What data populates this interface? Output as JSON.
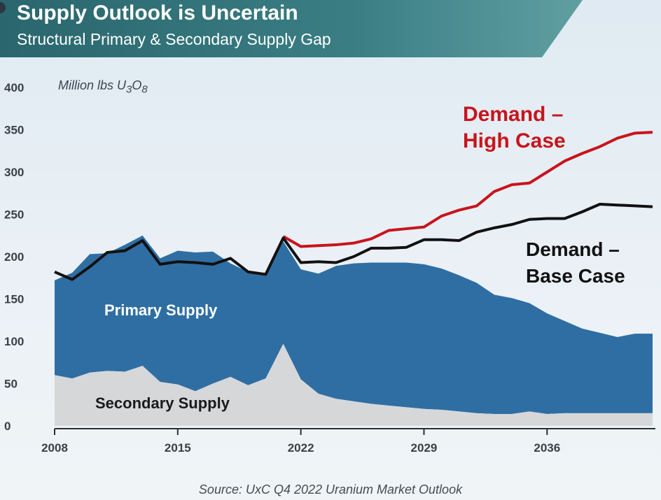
{
  "title": "Supply Outlook is Uncertain",
  "subtitle": "Structural Primary & Secondary Supply Gap",
  "source": "Source: UxC Q4 2022 Uranium Market Outlook",
  "colors": {
    "banner": "#2f6f77",
    "primary_supply": "#2f6ea3",
    "secondary_supply": "#d6d7d9",
    "demand_high": "#c8141c",
    "demand_base": "#111111"
  },
  "chart_data": {
    "type": "area",
    "unit_label": "Million lbs U3O8",
    "y_ticks": [
      0,
      50,
      100,
      150,
      200,
      250,
      300,
      350,
      400
    ],
    "x_ticks": [
      "2008",
      "2015",
      "2022",
      "2029",
      "2036"
    ],
    "ylim": [
      0,
      400
    ],
    "xlim": [
      2008,
      2042
    ],
    "series": [
      {
        "name": "Secondary Supply",
        "style": "area",
        "x": [
          2008,
          2009,
          2010,
          2011,
          2012,
          2013,
          2014,
          2015,
          2016,
          2017,
          2018,
          2019,
          2020,
          2021,
          2022,
          2023,
          2024,
          2025,
          2026,
          2027,
          2028,
          2029,
          2030,
          2031,
          2032,
          2033,
          2034,
          2035,
          2036,
          2037,
          2038,
          2039,
          2040,
          2041,
          2042
        ],
        "values": [
          60,
          56,
          63,
          65,
          64,
          71,
          52,
          49,
          41,
          50,
          58,
          48,
          56,
          97,
          55,
          38,
          32,
          29,
          26,
          24,
          22,
          20,
          19,
          17,
          15,
          14,
          14,
          17,
          14,
          15,
          15,
          15,
          15,
          15,
          15
        ]
      },
      {
        "name": "Primary Supply",
        "style": "area",
        "x": [
          2008,
          2009,
          2010,
          2011,
          2012,
          2013,
          2014,
          2015,
          2016,
          2017,
          2018,
          2019,
          2020,
          2021,
          2022,
          2023,
          2024,
          2025,
          2026,
          2027,
          2028,
          2029,
          2030,
          2031,
          2032,
          2033,
          2034,
          2035,
          2036,
          2037,
          2038,
          2039,
          2040,
          2041,
          2042
        ],
        "values": [
          112,
          125,
          140,
          139,
          150,
          154,
          146,
          158,
          164,
          156,
          134,
          134,
          122,
          121,
          130,
          142,
          157,
          163,
          167,
          169,
          171,
          171,
          167,
          161,
          154,
          141,
          137,
          128,
          119,
          109,
          100,
          95,
          90,
          94,
          94
        ]
      },
      {
        "name": "Demand – High Case",
        "style": "line",
        "x": [
          2021,
          2022,
          2023,
          2024,
          2025,
          2026,
          2027,
          2028,
          2029,
          2030,
          2031,
          2032,
          2033,
          2034,
          2035,
          2036,
          2037,
          2038,
          2039,
          2040,
          2041,
          2042
        ],
        "values": [
          224,
          212,
          213,
          214,
          216,
          221,
          231,
          233,
          235,
          248,
          255,
          260,
          277,
          285,
          287,
          300,
          313,
          322,
          330,
          340,
          346,
          347
        ]
      },
      {
        "name": "Demand – Base Case",
        "style": "line",
        "x": [
          2008,
          2009,
          2010,
          2011,
          2012,
          2013,
          2014,
          2015,
          2016,
          2017,
          2018,
          2019,
          2020,
          2021,
          2022,
          2023,
          2024,
          2025,
          2026,
          2027,
          2028,
          2029,
          2030,
          2031,
          2032,
          2033,
          2034,
          2035,
          2036,
          2037,
          2038,
          2039,
          2040,
          2041,
          2042
        ],
        "values": [
          182,
          173,
          188,
          205,
          207,
          219,
          191,
          194,
          193,
          191,
          198,
          182,
          179,
          222,
          193,
          194,
          193,
          200,
          210,
          210,
          211,
          220,
          220,
          219,
          229,
          234,
          238,
          244,
          245,
          245,
          253,
          262,
          261,
          260,
          259
        ]
      }
    ],
    "series_labels": [
      {
        "series": "Primary Supply",
        "lines": [
          "Primary Supply"
        ]
      },
      {
        "series": "Secondary Supply",
        "lines": [
          "Secondary Supply"
        ]
      },
      {
        "series": "Demand – High Case",
        "lines": [
          "Demand –",
          "High Case"
        ]
      },
      {
        "series": "Demand – Base Case",
        "lines": [
          "Demand –",
          "Base Case"
        ]
      }
    ]
  }
}
